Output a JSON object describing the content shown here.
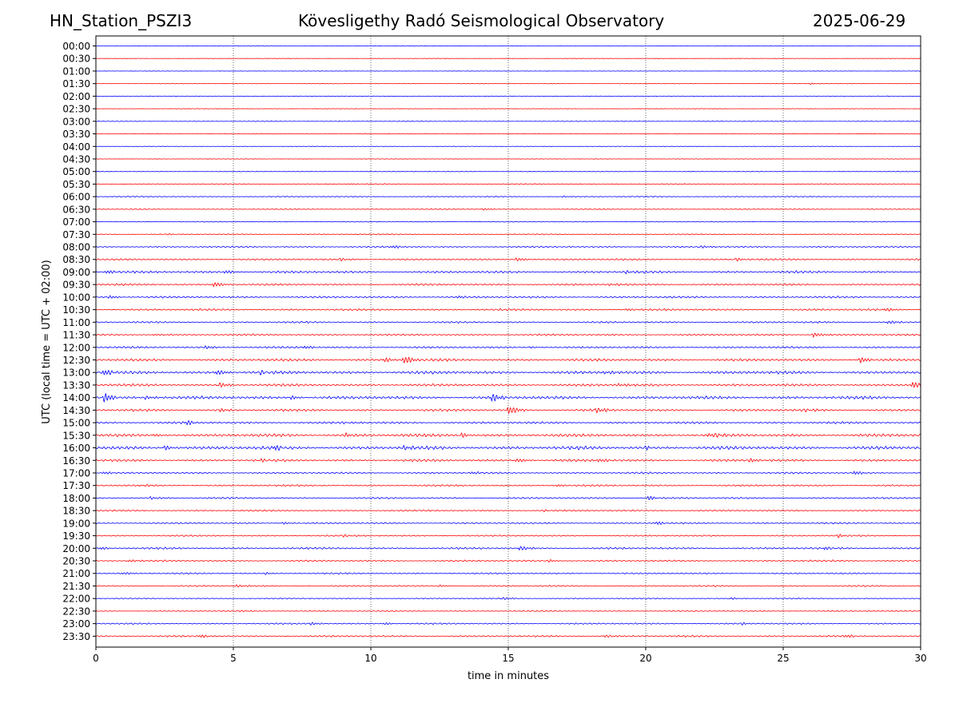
{
  "header": {
    "station": "HN_Station_PSZI3",
    "observatory": "Kövesligethy Radó Seismological Observatory",
    "date": "2025-06-29"
  },
  "chart_data": {
    "type": "line",
    "title": "Kövesligethy Radó Seismological Observatory",
    "xlabel": "time in minutes",
    "ylabel": "UTC (local time = UTC + 02:00)",
    "xlim": [
      0,
      30
    ],
    "x_ticks": [
      "0",
      "5",
      "10",
      "15",
      "20",
      "25",
      "30"
    ],
    "vertical_gridlines": [
      5,
      10,
      15,
      20,
      25
    ],
    "grid": "vertical dotted at every 5 minutes",
    "series_colors": [
      "#0000ff",
      "#ff0000"
    ],
    "rows": [
      {
        "label": "00:00",
        "activity": 0.15,
        "events": [
          {
            "t": 4.6,
            "amp": 0.15
          }
        ]
      },
      {
        "label": "00:30",
        "activity": 0.1,
        "events": []
      },
      {
        "label": "01:00",
        "activity": 0.1,
        "events": []
      },
      {
        "label": "01:30",
        "activity": 0.12,
        "events": [
          {
            "t": 26.0,
            "amp": 0.3
          },
          {
            "t": 16.5,
            "amp": 0.12
          }
        ]
      },
      {
        "label": "02:00",
        "activity": 0.1,
        "events": []
      },
      {
        "label": "02:30",
        "activity": 0.1,
        "events": []
      },
      {
        "label": "03:00",
        "activity": 0.15,
        "events": []
      },
      {
        "label": "03:30",
        "activity": 0.15,
        "events": [
          {
            "t": 9.8,
            "amp": 0.2
          }
        ]
      },
      {
        "label": "04:00",
        "activity": 0.12,
        "events": []
      },
      {
        "label": "04:30",
        "activity": 0.12,
        "events": []
      },
      {
        "label": "05:00",
        "activity": 0.15,
        "events": [
          {
            "t": 29.5,
            "amp": 0.25
          }
        ]
      },
      {
        "label": "05:30",
        "activity": 0.25,
        "events": [
          {
            "t": 9.3,
            "amp": 0.25
          }
        ]
      },
      {
        "label": "06:00",
        "activity": 0.25,
        "events": [
          {
            "t": 17.0,
            "amp": 0.25
          }
        ]
      },
      {
        "label": "06:30",
        "activity": 0.22,
        "events": [
          {
            "t": 14.1,
            "amp": 0.3
          }
        ]
      },
      {
        "label": "07:00",
        "activity": 0.2,
        "events": []
      },
      {
        "label": "07:30",
        "activity": 0.25,
        "events": [
          {
            "t": 2.6,
            "amp": 0.25
          }
        ]
      },
      {
        "label": "08:00",
        "activity": 0.35,
        "events": [
          {
            "t": 10.8,
            "amp": 0.45
          },
          {
            "t": 22.0,
            "amp": 0.45
          }
        ]
      },
      {
        "label": "08:30",
        "activity": 0.4,
        "events": [
          {
            "t": 8.9,
            "amp": 0.6
          },
          {
            "t": 15.3,
            "amp": 0.7
          },
          {
            "t": 23.3,
            "amp": 0.6
          }
        ]
      },
      {
        "label": "09:00",
        "activity": 0.55,
        "events": [
          {
            "t": 0.4,
            "amp": 0.6
          },
          {
            "t": 4.7,
            "amp": 0.7
          },
          {
            "t": 19.3,
            "amp": 0.7
          }
        ]
      },
      {
        "label": "09:30",
        "activity": 0.45,
        "events": [
          {
            "t": 4.3,
            "amp": 0.9
          },
          {
            "t": 18.7,
            "amp": 0.5
          }
        ]
      },
      {
        "label": "10:00",
        "activity": 0.45,
        "events": [
          {
            "t": 0.5,
            "amp": 0.5
          },
          {
            "t": 13.2,
            "amp": 0.5
          }
        ]
      },
      {
        "label": "10:30",
        "activity": 0.45,
        "events": [
          {
            "t": 28.7,
            "amp": 0.6
          },
          {
            "t": 19.3,
            "amp": 0.5
          }
        ]
      },
      {
        "label": "11:00",
        "activity": 0.4,
        "events": [
          {
            "t": 28.8,
            "amp": 0.6
          }
        ]
      },
      {
        "label": "11:30",
        "activity": 0.4,
        "events": [
          {
            "t": 26.1,
            "amp": 0.9
          },
          {
            "t": 2.1,
            "amp": 0.4
          }
        ]
      },
      {
        "label": "12:00",
        "activity": 0.45,
        "events": [
          {
            "t": 4.0,
            "amp": 0.5
          },
          {
            "t": 7.6,
            "amp": 0.5
          },
          {
            "t": 15.8,
            "amp": 0.4
          }
        ]
      },
      {
        "label": "12:30",
        "activity": 0.6,
        "events": [
          {
            "t": 11.2,
            "amp": 1.4
          },
          {
            "t": 10.5,
            "amp": 0.7
          },
          {
            "t": 27.8,
            "amp": 1.0
          }
        ]
      },
      {
        "label": "13:00",
        "activity": 0.7,
        "events": [
          {
            "t": 0.3,
            "amp": 0.9
          },
          {
            "t": 4.4,
            "amp": 0.9
          },
          {
            "t": 6.0,
            "amp": 0.7
          },
          {
            "t": 18.5,
            "amp": 0.6
          }
        ]
      },
      {
        "label": "13:30",
        "activity": 0.6,
        "events": [
          {
            "t": 4.5,
            "amp": 0.8
          },
          {
            "t": 29.7,
            "amp": 1.4
          },
          {
            "t": 19.0,
            "amp": 0.7
          }
        ]
      },
      {
        "label": "14:00",
        "activity": 0.7,
        "events": [
          {
            "t": 0.3,
            "amp": 1.5
          },
          {
            "t": 14.4,
            "amp": 1.2
          },
          {
            "t": 1.8,
            "amp": 0.7
          },
          {
            "t": 7.1,
            "amp": 0.6
          }
        ]
      },
      {
        "label": "14:30",
        "activity": 0.55,
        "events": [
          {
            "t": 15.0,
            "amp": 1.6
          },
          {
            "t": 18.2,
            "amp": 0.8
          },
          {
            "t": 25.8,
            "amp": 0.7
          },
          {
            "t": 4.5,
            "amp": 0.5
          }
        ]
      },
      {
        "label": "15:00",
        "activity": 0.5,
        "events": [
          {
            "t": 3.3,
            "amp": 0.8
          },
          {
            "t": 9.0,
            "amp": 0.5
          }
        ]
      },
      {
        "label": "15:30",
        "activity": 0.7,
        "events": [
          {
            "t": 9.1,
            "amp": 0.9
          },
          {
            "t": 13.3,
            "amp": 0.8
          },
          {
            "t": 22.3,
            "amp": 1.0
          },
          {
            "t": 2.1,
            "amp": 0.6
          }
        ]
      },
      {
        "label": "16:00",
        "activity": 0.8,
        "events": [
          {
            "t": 2.5,
            "amp": 0.9
          },
          {
            "t": 6.5,
            "amp": 0.9
          },
          {
            "t": 11.2,
            "amp": 0.7
          },
          {
            "t": 20.0,
            "amp": 0.6
          }
        ]
      },
      {
        "label": "16:30",
        "activity": 0.55,
        "events": [
          {
            "t": 15.3,
            "amp": 0.8
          },
          {
            "t": 6.0,
            "amp": 0.6
          },
          {
            "t": 18.3,
            "amp": 0.6
          },
          {
            "t": 23.8,
            "amp": 0.6
          }
        ]
      },
      {
        "label": "17:00",
        "activity": 0.4,
        "events": [
          {
            "t": 0.3,
            "amp": 0.4
          },
          {
            "t": 27.6,
            "amp": 0.6
          },
          {
            "t": 13.7,
            "amp": 0.4
          }
        ]
      },
      {
        "label": "17:30",
        "activity": 0.4,
        "events": [
          {
            "t": 1.6,
            "amp": 0.4
          },
          {
            "t": 16.8,
            "amp": 0.4
          }
        ]
      },
      {
        "label": "18:00",
        "activity": 0.4,
        "events": [
          {
            "t": 2.0,
            "amp": 0.6
          },
          {
            "t": 20.1,
            "amp": 0.8
          }
        ]
      },
      {
        "label": "18:30",
        "activity": 0.35,
        "events": [
          {
            "t": 16.3,
            "amp": 0.4
          }
        ]
      },
      {
        "label": "19:00",
        "activity": 0.35,
        "events": [
          {
            "t": 20.4,
            "amp": 0.6
          },
          {
            "t": 6.8,
            "amp": 0.4
          }
        ]
      },
      {
        "label": "19:30",
        "activity": 0.35,
        "events": [
          {
            "t": 9.0,
            "amp": 0.5
          },
          {
            "t": 27.0,
            "amp": 0.6
          }
        ]
      },
      {
        "label": "20:00",
        "activity": 0.45,
        "events": [
          {
            "t": 15.4,
            "amp": 0.9
          },
          {
            "t": 26.5,
            "amp": 0.7
          },
          {
            "t": 0.2,
            "amp": 0.4
          }
        ]
      },
      {
        "label": "20:30",
        "activity": 0.4,
        "events": [
          {
            "t": 16.5,
            "amp": 0.5
          },
          {
            "t": 1.2,
            "amp": 0.4
          }
        ]
      },
      {
        "label": "21:00",
        "activity": 0.35,
        "events": [
          {
            "t": 1.0,
            "amp": 0.4
          },
          {
            "t": 6.2,
            "amp": 0.4
          }
        ]
      },
      {
        "label": "21:30",
        "activity": 0.35,
        "events": [
          {
            "t": 5.1,
            "amp": 0.5
          },
          {
            "t": 12.5,
            "amp": 0.4
          }
        ]
      },
      {
        "label": "22:00",
        "activity": 0.25,
        "events": [
          {
            "t": 14.8,
            "amp": 0.4
          },
          {
            "t": 23.1,
            "amp": 0.4
          }
        ]
      },
      {
        "label": "22:30",
        "activity": 0.25,
        "events": [
          {
            "t": 5.2,
            "amp": 0.3
          }
        ]
      },
      {
        "label": "23:00",
        "activity": 0.35,
        "events": [
          {
            "t": 7.8,
            "amp": 0.5
          },
          {
            "t": 10.5,
            "amp": 0.4
          },
          {
            "t": 23.5,
            "amp": 0.4
          }
        ]
      },
      {
        "label": "23:30",
        "activity": 0.4,
        "events": [
          {
            "t": 3.8,
            "amp": 0.5
          },
          {
            "t": 18.5,
            "amp": 0.5
          },
          {
            "t": 27.3,
            "amp": 0.5
          }
        ]
      }
    ]
  }
}
